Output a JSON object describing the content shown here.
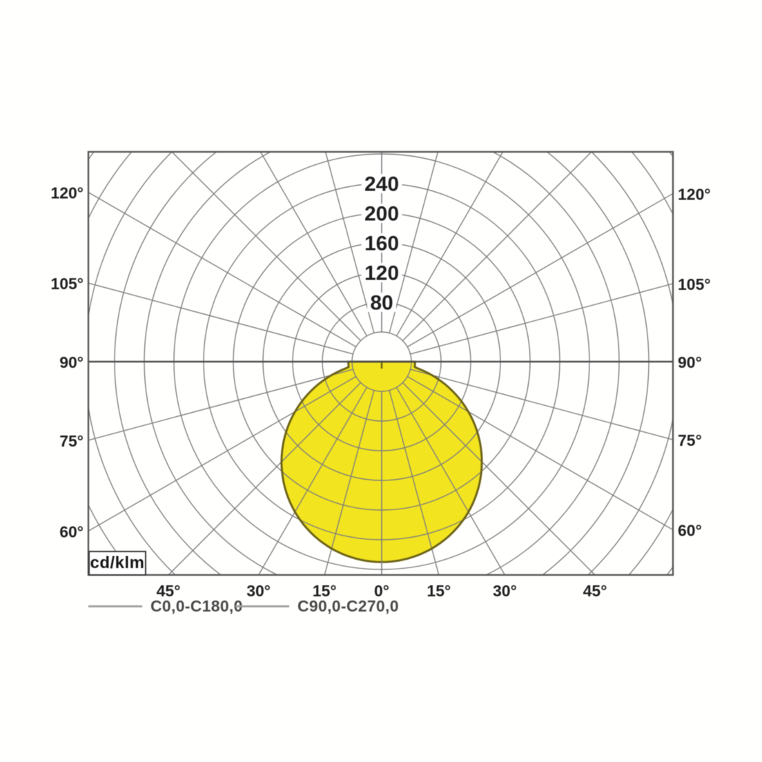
{
  "page": {
    "background": "#ffffff",
    "description_label": "photometric polar light distribution diagram"
  },
  "chart_data": {
    "type": "polar",
    "variant": "photometric-light-distribution",
    "radial_unit_label": "cd/klm",
    "radial_ticks": [
      80,
      120,
      160,
      200,
      240
    ],
    "radial_grid_step": 40,
    "radial_grid_max": 480,
    "angle_grid_step_deg": 15,
    "left_angle_labels": [
      "120°",
      "105°",
      "90°",
      "75°",
      "60°"
    ],
    "right_angle_labels": [
      "120°",
      "105°",
      "90°",
      "75°",
      "60°"
    ],
    "side_angle_values_deg": [
      120,
      105,
      90,
      75,
      60
    ],
    "bottom_angle_labels": [
      "45°",
      "30°",
      "15°",
      "0°",
      "15°",
      "30°",
      "45°"
    ],
    "bottom_angle_values_deg": [
      -45,
      -30,
      -15,
      0,
      15,
      30,
      45
    ],
    "grid": true,
    "legend_position": "bottom-left",
    "legend": [
      {
        "label": "C0,0-C180,0"
      },
      {
        "label": "C90,0-C270,0"
      }
    ],
    "series": [
      {
        "name": "C0,0-C180,0",
        "angles_deg": [
          -90,
          -75,
          -60,
          -45,
          -30,
          -15,
          0,
          15,
          30,
          45,
          60,
          75,
          90
        ],
        "values_cd_per_klm": [
          45,
          70,
          135,
          191,
          234,
          261,
          270,
          261,
          234,
          191,
          135,
          70,
          45
        ]
      },
      {
        "name": "C90,0-C270,0",
        "angles_deg": [
          -90,
          -75,
          -60,
          -45,
          -30,
          -15,
          0,
          15,
          30,
          45,
          60,
          75,
          90
        ],
        "values_cd_per_klm": [
          45,
          70,
          135,
          191,
          234,
          261,
          270,
          261,
          234,
          191,
          135,
          70,
          45
        ]
      }
    ],
    "lobe": {
      "max_intensity": 270,
      "horizontal_intensity": 45
    },
    "colors": {
      "fill": "#f2e41f",
      "outline": "#6e6418",
      "grid": "#7e7e7e",
      "axis": "#4f4f4f",
      "border": "#565656",
      "label_text": "#1f1f1f",
      "legend_line": "#a2a2a2",
      "legend_text": "#4a4a4a"
    }
  }
}
